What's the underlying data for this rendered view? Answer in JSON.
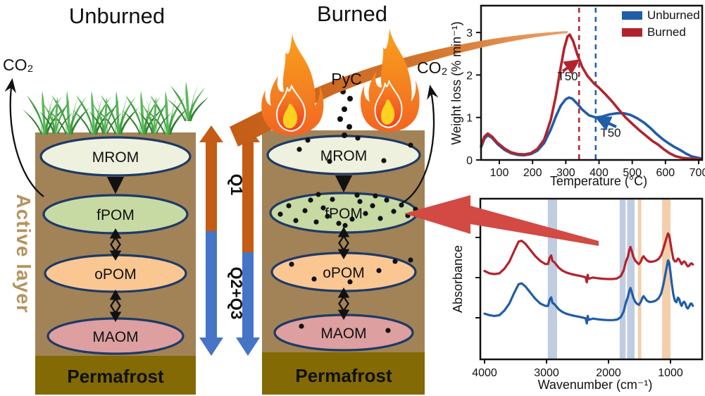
{
  "figure": {
    "left_panel": {
      "title": "Unburned",
      "co2": "CO₂",
      "active_layer": "Active layer",
      "permafrost": "Permafrost",
      "pools": [
        "MROM",
        "fPOM",
        "oPOM",
        "MAOM"
      ]
    },
    "right_panel": {
      "title": "Burned",
      "co2": "CO₂",
      "pyc": "PyC",
      "permafrost": "Permafrost",
      "pools": [
        "MROM",
        "fPOM",
        "oPOM",
        "MAOM"
      ]
    },
    "flux_arrows": {
      "q1": "Q1",
      "q23": "Q2+Q3"
    }
  },
  "colors": {
    "q1_orange": "#c45c15",
    "q23_blue": "#4674c6",
    "unburned_blue": "#1f5da8",
    "burned_red": "#b2232d",
    "transfer_arrow_orange": "#d4762e",
    "highlight_arrow_red": "#d24a43",
    "soil_brown": "#a28357",
    "permafrost_olive": "#836a04",
    "active_layer_tan": "#b5935e"
  },
  "chart_data": [
    {
      "type": "line",
      "title": "",
      "xlabel": "Temperature (°C)",
      "ylabel": "Weight loss (% min⁻¹)",
      "xlim": [
        40,
        710
      ],
      "ylim": [
        0,
        3.6
      ],
      "xticks": [
        100,
        200,
        300,
        400,
        500,
        600,
        700
      ],
      "yticks": [
        0,
        1,
        2,
        3
      ],
      "grid": false,
      "legend_position": "top-right",
      "series": [
        {
          "name": "Unburned",
          "color": "#1f5da8",
          "points": [
            [
              45,
              0.3
            ],
            [
              55,
              0.5
            ],
            [
              65,
              0.58
            ],
            [
              78,
              0.52
            ],
            [
              95,
              0.37
            ],
            [
              115,
              0.24
            ],
            [
              135,
              0.16
            ],
            [
              155,
              0.12
            ],
            [
              175,
              0.11
            ],
            [
              195,
              0.14
            ],
            [
              215,
              0.22
            ],
            [
              235,
              0.4
            ],
            [
              255,
              0.72
            ],
            [
              270,
              1.02
            ],
            [
              285,
              1.28
            ],
            [
              300,
              1.43
            ],
            [
              310,
              1.47
            ],
            [
              320,
              1.44
            ],
            [
              335,
              1.32
            ],
            [
              350,
              1.18
            ],
            [
              370,
              1.05
            ],
            [
              390,
              1.0
            ],
            [
              410,
              1.02
            ],
            [
              430,
              1.07
            ],
            [
              455,
              1.1
            ],
            [
              475,
              1.1
            ],
            [
              495,
              1.06
            ],
            [
              515,
              0.98
            ],
            [
              535,
              0.88
            ],
            [
              555,
              0.75
            ],
            [
              572,
              0.62
            ],
            [
              590,
              0.5
            ],
            [
              608,
              0.4
            ],
            [
              626,
              0.31
            ],
            [
              645,
              0.23
            ],
            [
              662,
              0.15
            ],
            [
              680,
              0.08
            ],
            [
              705,
              0.04
            ]
          ]
        },
        {
          "name": "Burned",
          "color": "#b2232d",
          "points": [
            [
              45,
              0.33
            ],
            [
              55,
              0.55
            ],
            [
              65,
              0.62
            ],
            [
              78,
              0.55
            ],
            [
              95,
              0.4
            ],
            [
              115,
              0.27
            ],
            [
              135,
              0.18
            ],
            [
              155,
              0.14
            ],
            [
              175,
              0.13
            ],
            [
              195,
              0.16
            ],
            [
              215,
              0.26
            ],
            [
              235,
              0.48
            ],
            [
              255,
              0.95
            ],
            [
              270,
              1.5
            ],
            [
              283,
              2.1
            ],
            [
              295,
              2.62
            ],
            [
              305,
              2.9
            ],
            [
              312,
              2.95
            ],
            [
              322,
              2.8
            ],
            [
              335,
              2.48
            ],
            [
              350,
              2.18
            ],
            [
              365,
              1.98
            ],
            [
              385,
              1.8
            ],
            [
              400,
              1.7
            ],
            [
              420,
              1.54
            ],
            [
              440,
              1.37
            ],
            [
              460,
              1.18
            ],
            [
              480,
              1.0
            ],
            [
              500,
              0.85
            ],
            [
              520,
              0.71
            ],
            [
              540,
              0.58
            ],
            [
              560,
              0.45
            ],
            [
              578,
              0.36
            ],
            [
              595,
              0.25
            ],
            [
              612,
              0.16
            ],
            [
              630,
              0.09
            ],
            [
              650,
              0.05
            ],
            [
              675,
              0.03
            ],
            [
              705,
              0.02
            ]
          ]
        }
      ],
      "annotations": [
        {
          "text": "T50",
          "series": "Burned",
          "t50_c": 340,
          "color": "#b2232d"
        },
        {
          "text": "T50",
          "series": "Unburned",
          "t50_c": 390,
          "color": "#1f5da8"
        }
      ]
    },
    {
      "type": "line",
      "title": "",
      "xlabel": "Wavenumber (cm⁻¹)",
      "ylabel": "Absorbance",
      "x_reversed": true,
      "xlim": [
        4000,
        500
      ],
      "xticks": [
        4000,
        3000,
        2000,
        1000
      ],
      "grid": false,
      "highlight_bands": [
        {
          "range": [
            2980,
            2830
          ],
          "color": "#b9c6dd"
        },
        {
          "range": [
            1820,
            1725
          ],
          "color": "#b9c6dd"
        },
        {
          "range": [
            1700,
            1580
          ],
          "color": "#b9c6dd"
        },
        {
          "range": [
            1525,
            1470
          ],
          "color": "#f3c9a2"
        },
        {
          "range": [
            1135,
            1000
          ],
          "color": "#f3c9a2"
        }
      ],
      "series": [
        {
          "name": "Burned",
          "color": "#b2232d",
          "points": [
            [
              4000,
              0.57
            ],
            [
              3920,
              0.555
            ],
            [
              3840,
              0.55
            ],
            [
              3760,
              0.555
            ],
            [
              3680,
              0.585
            ],
            [
              3600,
              0.63
            ],
            [
              3520,
              0.7
            ],
            [
              3450,
              0.76
            ],
            [
              3400,
              0.765
            ],
            [
              3340,
              0.745
            ],
            [
              3260,
              0.705
            ],
            [
              3180,
              0.665
            ],
            [
              3100,
              0.635
            ],
            [
              3020,
              0.615
            ],
            [
              2975,
              0.615
            ],
            [
              2950,
              0.655
            ],
            [
              2925,
              0.67
            ],
            [
              2905,
              0.635
            ],
            [
              2870,
              0.625
            ],
            [
              2850,
              0.615
            ],
            [
              2800,
              0.59
            ],
            [
              2740,
              0.572
            ],
            [
              2680,
              0.56
            ],
            [
              2600,
              0.55
            ],
            [
              2520,
              0.543
            ],
            [
              2440,
              0.537
            ],
            [
              2370,
              0.53
            ],
            [
              2350,
              0.497
            ],
            [
              2335,
              0.545
            ],
            [
              2320,
              0.52
            ],
            [
              2250,
              0.528
            ],
            [
              2170,
              0.523
            ],
            [
              2090,
              0.52
            ],
            [
              2010,
              0.518
            ],
            [
              1930,
              0.518
            ],
            [
              1860,
              0.522
            ],
            [
              1800,
              0.538
            ],
            [
              1755,
              0.575
            ],
            [
              1720,
              0.63
            ],
            [
              1690,
              0.66
            ],
            [
              1660,
              0.71
            ],
            [
              1645,
              0.725
            ],
            [
              1625,
              0.7
            ],
            [
              1600,
              0.663
            ],
            [
              1570,
              0.638
            ],
            [
              1540,
              0.624
            ],
            [
              1510,
              0.614
            ],
            [
              1480,
              0.63
            ],
            [
              1455,
              0.655
            ],
            [
              1435,
              0.665
            ],
            [
              1410,
              0.652
            ],
            [
              1380,
              0.638
            ],
            [
              1340,
              0.63
            ],
            [
              1290,
              0.63
            ],
            [
              1240,
              0.636
            ],
            [
              1190,
              0.648
            ],
            [
              1150,
              0.672
            ],
            [
              1110,
              0.72
            ],
            [
              1070,
              0.775
            ],
            [
              1040,
              0.812
            ],
            [
              1020,
              0.8
            ],
            [
              1000,
              0.75
            ],
            [
              980,
              0.7
            ],
            [
              955,
              0.648
            ],
            [
              930,
              0.632
            ],
            [
              905,
              0.633
            ],
            [
              880,
              0.65
            ],
            [
              860,
              0.645
            ],
            [
              840,
              0.628
            ],
            [
              820,
              0.614
            ],
            [
              800,
              0.625
            ],
            [
              780,
              0.632
            ],
            [
              760,
              0.625
            ],
            [
              740,
              0.61
            ],
            [
              720,
              0.6
            ],
            [
              700,
              0.603
            ],
            [
              680,
              0.615
            ],
            [
              660,
              0.62
            ],
            [
              640,
              0.612
            ]
          ]
        },
        {
          "name": "Unburned",
          "color": "#1f5da8",
          "points": [
            [
              4000,
              0.295
            ],
            [
              3920,
              0.285
            ],
            [
              3840,
              0.28
            ],
            [
              3760,
              0.285
            ],
            [
              3680,
              0.315
            ],
            [
              3600,
              0.36
            ],
            [
              3520,
              0.43
            ],
            [
              3450,
              0.485
            ],
            [
              3400,
              0.49
            ],
            [
              3340,
              0.47
            ],
            [
              3260,
              0.43
            ],
            [
              3180,
              0.39
            ],
            [
              3100,
              0.36
            ],
            [
              3020,
              0.345
            ],
            [
              2975,
              0.345
            ],
            [
              2950,
              0.385
            ],
            [
              2925,
              0.4
            ],
            [
              2905,
              0.365
            ],
            [
              2870,
              0.355
            ],
            [
              2850,
              0.345
            ],
            [
              2800,
              0.322
            ],
            [
              2740,
              0.305
            ],
            [
              2680,
              0.294
            ],
            [
              2600,
              0.285
            ],
            [
              2520,
              0.278
            ],
            [
              2440,
              0.272
            ],
            [
              2370,
              0.265
            ],
            [
              2350,
              0.232
            ],
            [
              2335,
              0.28
            ],
            [
              2320,
              0.255
            ],
            [
              2250,
              0.263
            ],
            [
              2170,
              0.258
            ],
            [
              2090,
              0.255
            ],
            [
              2010,
              0.253
            ],
            [
              1930,
              0.253
            ],
            [
              1860,
              0.257
            ],
            [
              1800,
              0.273
            ],
            [
              1755,
              0.31
            ],
            [
              1720,
              0.365
            ],
            [
              1690,
              0.4
            ],
            [
              1660,
              0.445
            ],
            [
              1645,
              0.46
            ],
            [
              1625,
              0.435
            ],
            [
              1600,
              0.398
            ],
            [
              1570,
              0.372
            ],
            [
              1540,
              0.358
            ],
            [
              1510,
              0.352
            ],
            [
              1480,
              0.37
            ],
            [
              1455,
              0.395
            ],
            [
              1435,
              0.408
            ],
            [
              1410,
              0.395
            ],
            [
              1380,
              0.378
            ],
            [
              1340,
              0.37
            ],
            [
              1290,
              0.372
            ],
            [
              1240,
              0.378
            ],
            [
              1190,
              0.395
            ],
            [
              1150,
              0.425
            ],
            [
              1110,
              0.49
            ],
            [
              1070,
              0.575
            ],
            [
              1040,
              0.638
            ],
            [
              1020,
              0.625
            ],
            [
              1000,
              0.56
            ],
            [
              980,
              0.49
            ],
            [
              955,
              0.42
            ],
            [
              930,
              0.378
            ],
            [
              905,
              0.368
            ],
            [
              880,
              0.398
            ],
            [
              860,
              0.39
            ],
            [
              840,
              0.36
            ],
            [
              820,
              0.345
            ],
            [
              800,
              0.365
            ],
            [
              780,
              0.372
            ],
            [
              760,
              0.36
            ],
            [
              740,
              0.335
            ],
            [
              720,
              0.328
            ],
            [
              700,
              0.34
            ],
            [
              680,
              0.358
            ],
            [
              660,
              0.36
            ],
            [
              640,
              0.345
            ]
          ]
        }
      ]
    }
  ]
}
